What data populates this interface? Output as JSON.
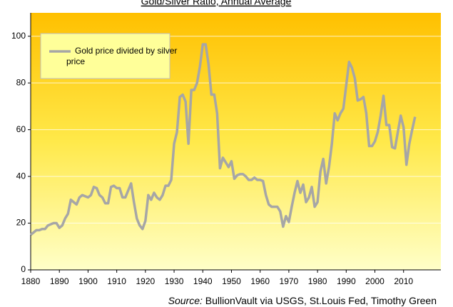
{
  "chart_data": {
    "type": "line",
    "title": "Gold/Silver Ratio, Annual Average",
    "source_label": "Source:",
    "source": "BullionVault via USGS, St.Louis Fed, Timothy Green",
    "x": [
      1880,
      1881,
      1882,
      1883,
      1884,
      1885,
      1886,
      1887,
      1888,
      1889,
      1890,
      1891,
      1892,
      1893,
      1894,
      1895,
      1896,
      1897,
      1898,
      1899,
      1900,
      1901,
      1902,
      1903,
      1904,
      1905,
      1906,
      1907,
      1908,
      1909,
      1910,
      1911,
      1912,
      1913,
      1914,
      1915,
      1916,
      1917,
      1918,
      1919,
      1920,
      1921,
      1922,
      1923,
      1924,
      1925,
      1926,
      1927,
      1928,
      1929,
      1930,
      1931,
      1932,
      1933,
      1934,
      1935,
      1936,
      1937,
      1938,
      1939,
      1940,
      1941,
      1942,
      1943,
      1944,
      1945,
      1946,
      1947,
      1948,
      1949,
      1950,
      1951,
      1952,
      1953,
      1954,
      1955,
      1956,
      1957,
      1958,
      1959,
      1960,
      1961,
      1962,
      1963,
      1964,
      1965,
      1966,
      1967,
      1968,
      1969,
      1970,
      1971,
      1972,
      1973,
      1974,
      1975,
      1976,
      1977,
      1978,
      1979,
      1980,
      1981,
      1982,
      1983,
      1984,
      1985,
      1986,
      1987,
      1988,
      1989,
      1990,
      1991,
      1992,
      1993,
      1994,
      1995,
      1996,
      1997,
      1998,
      1999,
      2000,
      2001,
      2002,
      2003,
      2004,
      2005,
      2006,
      2007,
      2008,
      2009,
      2010,
      2011,
      2012,
      2013,
      2014
    ],
    "series": [
      {
        "name": "Gold price divided by silver price",
        "color": "#a6a6a6",
        "values": [
          15,
          16,
          17,
          17,
          17.5,
          17.5,
          19,
          19.5,
          20,
          20,
          18,
          19,
          22,
          24,
          30,
          29,
          28,
          31,
          32,
          31.5,
          31,
          32,
          35.5,
          35,
          32,
          31,
          28.5,
          28.5,
          35.5,
          36,
          35,
          35,
          31,
          31,
          34,
          37,
          29,
          22,
          19,
          17.5,
          21,
          32,
          30,
          33,
          31,
          30,
          32,
          36,
          36,
          38.5,
          54,
          59,
          74,
          75,
          72,
          54,
          77,
          77,
          80,
          87,
          96.5,
          96.5,
          88,
          75,
          75,
          67,
          43.5,
          48,
          46,
          44,
          46.5,
          39,
          40.5,
          41,
          41,
          40,
          38.5,
          38.5,
          39.5,
          38.5,
          38.5,
          38,
          32,
          28,
          27,
          27,
          27,
          25,
          18.5,
          23,
          20.5,
          27,
          33,
          38,
          33,
          36.5,
          29,
          31,
          35.5,
          27,
          29,
          42,
          47.5,
          37,
          44,
          54,
          67,
          64,
          67,
          69,
          79,
          89,
          86.5,
          82,
          72.5,
          73,
          74,
          67,
          53,
          53,
          55,
          59,
          66,
          74.5,
          62,
          62,
          52.5,
          52,
          59,
          66,
          61,
          45,
          54,
          60,
          65.5
        ]
      }
    ],
    "xlim": [
      1880,
      2023
    ],
    "ylim": [
      0,
      110
    ],
    "xticks": [
      1880,
      1890,
      1900,
      1910,
      1920,
      1930,
      1940,
      1950,
      1960,
      1970,
      1980,
      1990,
      2000,
      2010
    ],
    "yticks": [
      0,
      20,
      40,
      60,
      80,
      100
    ],
    "grid": true,
    "legend": "upper left"
  }
}
